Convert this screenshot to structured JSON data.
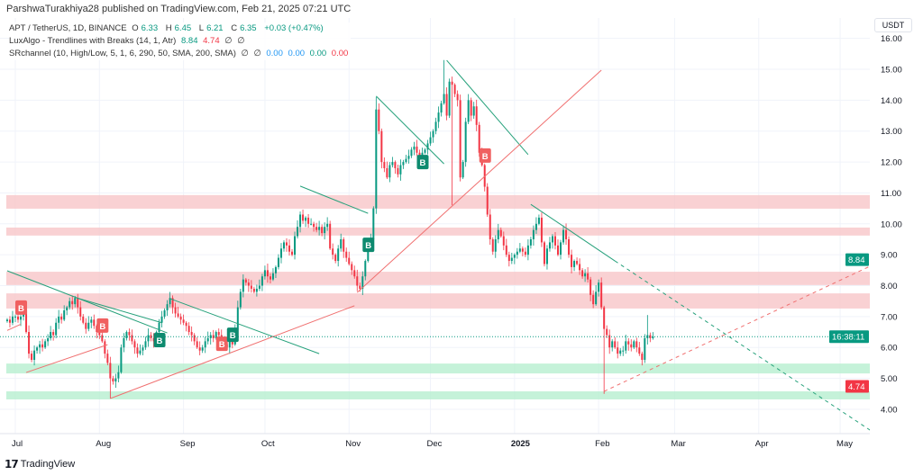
{
  "header": {
    "published": "ParshwaTurakhiya28 published on TradingView.com, Feb 21, 2025 07:21 UTC",
    "symbol": "APT / TetherUS, 1D, BINANCE",
    "o_label": "O",
    "o": "6.33",
    "h_label": "H",
    "h": "6.45",
    "l_label": "L",
    "l": "6.21",
    "c_label": "C",
    "c": "6.35",
    "change": "+0.03 (+0.47%)",
    "ind1": "LuxAlgo - Trendlines with Breaks (14, 1, Atr)",
    "ind1_v1": "8.84",
    "ind1_v2": "4.74",
    "ind1_v3": "∅",
    "ind1_v4": "∅",
    "ind2": "SRchannel (10, High/Low, 5, 1, 6, 290, 50, SMA, 200, SMA)",
    "ind2_v1": "∅",
    "ind2_v2": "∅",
    "ind2_v3": "0.00",
    "ind2_v4": "0.00",
    "ind2_v5": "0.00",
    "ind2_v6": "0.00"
  },
  "currency_button": "USDT",
  "footer_logo": "TradingView",
  "colors": {
    "up": "#089981",
    "down": "#f23645",
    "resistance_zone": "#f7c5c8",
    "support_zone": "#b7efd0",
    "grid": "#f0f3fa"
  },
  "chart_data": {
    "type": "candlestick",
    "interval": "1D",
    "start_date": "2024-06-28",
    "closes": [
      6.9,
      6.8,
      7.0,
      7.0,
      6.9,
      7.0,
      7.2,
      6.5,
      5.8,
      5.6,
      5.9,
      6.0,
      6.1,
      6.0,
      6.2,
      6.3,
      6.5,
      6.4,
      6.8,
      7.0,
      6.9,
      7.2,
      7.3,
      7.5,
      7.4,
      7.6,
      7.3,
      7.0,
      6.8,
      6.6,
      6.8,
      6.9,
      6.7,
      6.5,
      6.4,
      6.2,
      5.8,
      5.5,
      5.0,
      4.9,
      5.0,
      5.2,
      6.0,
      6.3,
      6.5,
      6.4,
      6.2,
      6.0,
      5.8,
      5.9,
      6.0,
      6.2,
      6.4,
      6.3,
      6.2,
      6.5,
      6.8,
      7.0,
      7.2,
      7.4,
      7.6,
      7.3,
      7.1,
      7.0,
      6.9,
      6.8,
      6.7,
      6.5,
      6.4,
      6.2,
      6.0,
      5.9,
      6.0,
      6.2,
      6.3,
      6.4,
      6.3,
      6.5,
      6.4,
      6.2,
      6.1,
      6.0,
      6.2,
      6.1,
      6.6,
      7.3,
      7.8,
      8.2,
      8.1,
      8.0,
      7.9,
      7.8,
      7.9,
      8.0,
      8.3,
      8.5,
      8.3,
      8.2,
      8.4,
      8.6,
      8.9,
      9.2,
      9.4,
      9.3,
      9.1,
      9.0,
      9.6,
      9.9,
      10.3,
      10.1,
      10.2,
      10.0,
      10.0,
      9.9,
      9.8,
      9.9,
      9.7,
      9.9,
      10.0,
      9.2,
      9.0,
      8.8,
      9.2,
      9.5,
      9.1,
      8.9,
      8.7,
      8.5,
      8.3,
      8.0,
      7.9,
      8.3,
      8.8,
      9.3,
      9.5,
      10.5,
      13.7,
      13.0,
      12.0,
      11.8,
      11.5,
      11.9,
      12.0,
      11.8,
      11.6,
      11.9,
      12.0,
      12.1,
      12.2,
      12.4,
      12.5,
      12.3,
      12.2,
      12.3,
      12.4,
      12.6,
      12.8,
      13.0,
      13.3,
      13.6,
      13.9,
      14.2,
      13.5,
      14.6,
      14.5,
      14.2,
      14.0,
      11.5,
      12.0,
      13.3,
      14.0,
      13.5,
      13.8,
      13.2,
      12.3,
      11.9,
      11.2,
      10.3,
      9.5,
      9.1,
      9.5,
      9.8,
      9.6,
      9.3,
      9.0,
      8.8,
      8.9,
      9.0,
      9.1,
      9.2,
      9.1,
      9.0,
      9.3,
      9.5,
      9.8,
      10.0,
      10.2,
      9.4,
      8.7,
      9.2,
      9.4,
      9.6,
      9.3,
      9.0,
      9.4,
      9.8,
      9.5,
      9.0,
      8.6,
      8.8,
      8.7,
      8.5,
      8.3,
      8.4,
      8.2,
      7.7,
      7.4,
      7.8,
      8.1,
      7.3,
      6.6,
      6.4,
      6.0,
      6.2,
      6.0,
      5.8,
      5.9,
      5.9,
      6.2,
      6.1,
      6.0,
      6.2,
      6.0,
      5.8,
      5.6,
      6.3,
      6.4,
      6.3,
      6.35
    ],
    "notable_wicks": [
      {
        "date": "2024-08-05",
        "low": 4.35
      },
      {
        "date": "2024-11-11",
        "high": 14.1
      },
      {
        "date": "2024-12-06",
        "high": 15.3
      },
      {
        "date": "2024-12-09",
        "low": 10.6
      },
      {
        "date": "2025-02-03",
        "low": 4.5
      },
      {
        "date": "2025-02-19",
        "high": 7.05
      }
    ],
    "y_axis": {
      "ticks": [
        "4.00",
        "5.00",
        "6.00",
        "7.00",
        "8.00",
        "9.00",
        "10.00",
        "11.00",
        "12.00",
        "13.00",
        "14.00",
        "15.00",
        "16.00"
      ],
      "range": [
        3.2,
        16.0
      ]
    },
    "x_axis": {
      "ticks": [
        {
          "label": "Jul",
          "date": "2024-07-01"
        },
        {
          "label": "Aug",
          "date": "2024-08-01"
        },
        {
          "label": "Sep",
          "date": "2024-09-01"
        },
        {
          "label": "Oct",
          "date": "2024-10-01"
        },
        {
          "label": "Nov",
          "date": "2024-11-01"
        },
        {
          "label": "Dec",
          "date": "2024-12-01"
        },
        {
          "label": "2025",
          "date": "2025-01-01",
          "bold": true
        },
        {
          "label": "Feb",
          "date": "2025-02-01"
        },
        {
          "label": "Mar",
          "date": "2025-03-01"
        },
        {
          "label": "Apr",
          "date": "2025-04-01"
        },
        {
          "label": "May",
          "date": "2025-05-01"
        }
      ]
    },
    "sr_zones": [
      {
        "type": "resistance",
        "top": 10.93,
        "bottom": 10.49
      },
      {
        "type": "resistance",
        "top": 9.88,
        "bottom": 9.62
      },
      {
        "type": "resistance",
        "top": 8.45,
        "bottom": 8.02
      },
      {
        "type": "resistance",
        "top": 7.75,
        "bottom": 7.26
      },
      {
        "type": "support",
        "top": 5.48,
        "bottom": 5.16
      },
      {
        "type": "support",
        "top": 4.58,
        "bottom": 4.32
      }
    ],
    "trendlines": [
      {
        "kind": "down",
        "from": [
          "2024-06-28",
          8.48
        ],
        "to": [
          "2024-08-26",
          6.47
        ]
      },
      {
        "kind": "down",
        "from": [
          "2024-07-23",
          7.62
        ],
        "to": [
          "2024-08-24",
          6.8
        ]
      },
      {
        "kind": "down",
        "from": [
          "2024-08-27",
          7.58
        ],
        "to": [
          "2024-10-21",
          5.8
        ]
      },
      {
        "kind": "down",
        "from": [
          "2024-10-14",
          11.22
        ],
        "to": [
          "2024-11-08",
          10.34
        ]
      },
      {
        "kind": "down",
        "from": [
          "2024-11-11",
          14.13
        ],
        "to": [
          "2024-12-06",
          11.94
        ]
      },
      {
        "kind": "down",
        "from": [
          "2024-12-07",
          15.29
        ],
        "to": [
          "2025-01-06",
          12.24
        ]
      },
      {
        "kind": "down",
        "from": [
          "2025-01-07",
          10.63
        ],
        "to": [
          "2025-02-07",
          8.8
        ]
      },
      {
        "kind": "down",
        "dashed": true,
        "from": [
          "2025-02-07",
          8.8
        ],
        "to": [
          "2025-05-13",
          3.27
        ]
      },
      {
        "kind": "up",
        "from": [
          "2024-06-28",
          6.55
        ],
        "to": [
          "2024-07-03",
          6.75
        ]
      },
      {
        "kind": "up",
        "from": [
          "2024-07-05",
          5.19
        ],
        "to": [
          "2024-08-04",
          6.09
        ]
      },
      {
        "kind": "up",
        "from": [
          "2024-08-05",
          4.35
        ],
        "to": [
          "2024-11-03",
          7.35
        ]
      },
      {
        "kind": "up",
        "from": [
          "2024-11-04",
          7.78
        ],
        "to": [
          "2025-02-02",
          14.97
        ]
      },
      {
        "kind": "up",
        "dashed": true,
        "from": [
          "2025-02-03",
          4.58
        ],
        "to": [
          "2025-05-14",
          8.71
        ]
      }
    ],
    "breaks": [
      {
        "label": "B",
        "kind": "down",
        "date": "2024-07-03",
        "price": 7.29
      },
      {
        "label": "B",
        "kind": "down",
        "date": "2024-08-02",
        "price": 6.71
      },
      {
        "label": "B",
        "kind": "up",
        "date": "2024-08-23",
        "price": 6.24
      },
      {
        "label": "B",
        "kind": "down",
        "date": "2024-09-15",
        "price": 6.12
      },
      {
        "label": "B",
        "kind": "up",
        "date": "2024-09-19",
        "price": 6.41
      },
      {
        "label": "B",
        "kind": "up",
        "date": "2024-11-08",
        "price": 9.32
      },
      {
        "label": "B",
        "kind": "up",
        "date": "2024-11-28",
        "price": 12.0
      },
      {
        "label": "B",
        "kind": "down",
        "date": "2024-12-21",
        "price": 12.21
      }
    ],
    "last_price": 6.35,
    "price_tags": [
      {
        "text": "8.84",
        "price": 8.84,
        "color": "#089981"
      },
      {
        "text": "16:38:11",
        "price": 6.35,
        "color": "#089981"
      },
      {
        "text": "4.74",
        "price": 4.74,
        "color": "#f23645"
      }
    ]
  }
}
